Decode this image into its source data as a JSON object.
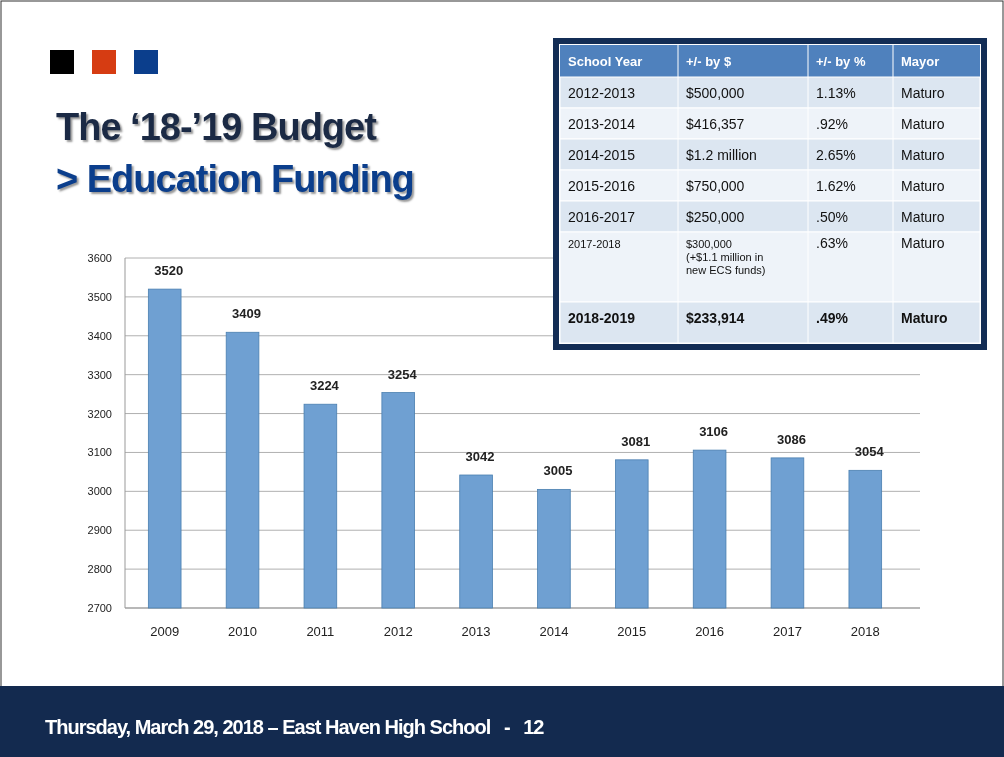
{
  "chart_data": [
    {
      "type": "bar",
      "title": "The ‘18-’19 Budget",
      "subtitle": "> Education Funding",
      "categories": [
        "2009",
        "2010",
        "2011",
        "2012",
        "2013",
        "2014",
        "2015",
        "2016",
        "2017",
        "2018"
      ],
      "values": [
        3520,
        3409,
        3224,
        3254,
        3042,
        3005,
        3081,
        3106,
        3086,
        3054
      ],
      "color": "#6fa0d2",
      "ylim": [
        2700,
        3600
      ],
      "yticks": [
        2700,
        2800,
        2900,
        3000,
        3100,
        3200,
        3300,
        3400,
        3500,
        3600
      ],
      "grid": "y",
      "data_labels": true,
      "annotations": [
        "Thursday, March 29, 2018 – East Haven High School   -   12"
      ]
    },
    {
      "type": "other",
      "categories": [
        "School Year",
        "+/- by $",
        "+/- by %",
        "Mayor"
      ],
      "cell_labels": [
        [
          "2012-2013",
          "$500,000",
          "1.13%",
          "Maturo"
        ],
        [
          "2013-2014",
          "$416,357",
          ".92%",
          "Maturo"
        ],
        [
          "2014-2015",
          "$1.2 million",
          "2.65%",
          "Maturo"
        ],
        [
          "2015-2016",
          "$750,000",
          "1.62%",
          "Maturo"
        ],
        [
          "2016-2017",
          "$250,000",
          ".50%",
          "Maturo"
        ],
        [
          "2017-2018",
          "$300,000\n(+$1.1 million in\nnew ECS funds)",
          ".63%",
          "Maturo"
        ],
        [
          "2018-2019",
          "$233,914",
          ".49%",
          "Maturo"
        ]
      ]
    }
  ]
}
